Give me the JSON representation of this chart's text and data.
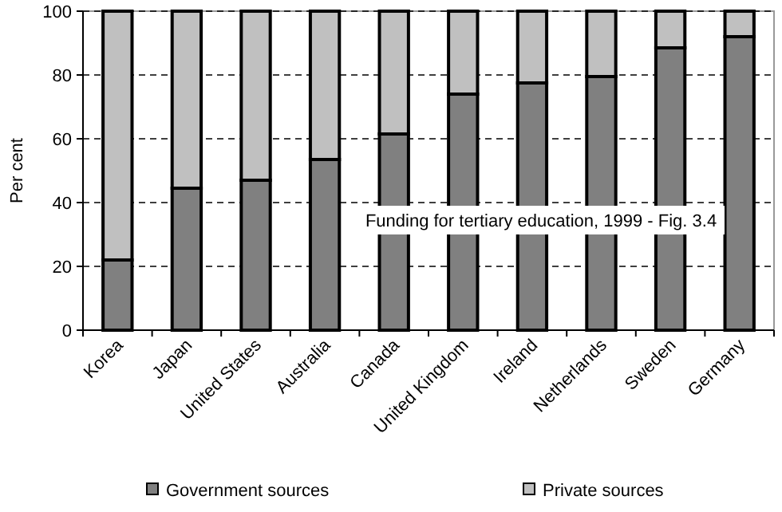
{
  "chart_data": {
    "type": "bar",
    "stacked": true,
    "ylabel": "Per cent",
    "categories": [
      "Korea",
      "Japan",
      "United States",
      "Australia",
      "Canada",
      "United Kingdom",
      "Ireland",
      "Netherlands",
      "Sweden",
      "Germany"
    ],
    "series": [
      {
        "name": "Government sources",
        "color": "#808080",
        "values": [
          22,
          44.5,
          47,
          53.5,
          61.5,
          74,
          77.5,
          79.5,
          88.5,
          92
        ]
      },
      {
        "name": "Private sources",
        "color": "#c0c0c0",
        "values": [
          78,
          55.5,
          53,
          46.5,
          38.5,
          26,
          22.5,
          20.5,
          11.5,
          8
        ]
      }
    ],
    "ylim": [
      0,
      100
    ],
    "yticks": [
      0,
      20,
      40,
      60,
      80,
      100
    ],
    "grid": "y",
    "legend": "bottom",
    "annotations": [
      "Funding for tertiary education, 1999 - Fig. 3.4"
    ]
  }
}
